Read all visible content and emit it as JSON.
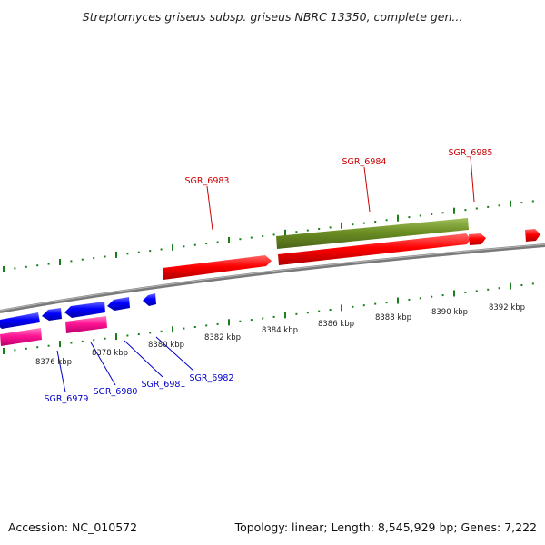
{
  "title": "Streptomyces griseus subsp. griseus NBRC 13350, complete gen...",
  "footer": {
    "accession": "Accession: NC_010572",
    "summary": "Topology: linear; Length: 8,545,929 bp; Genes: 7,222"
  },
  "axis": {
    "ticks": [
      "8376 kbp",
      "8378 kbp",
      "8380 kbp",
      "8382 kbp",
      "8384 kbp",
      "8386 kbp",
      "8388 kbp",
      "8390 kbp",
      "8392 kbp"
    ]
  },
  "gene_labels_top": [
    "SGR_6983",
    "SGR_6984",
    "SGR_6985"
  ],
  "gene_labels_bottom": [
    "SGR_6979",
    "SGR_6980",
    "SGR_6981",
    "SGR_6982"
  ],
  "colors": {
    "forward_gene": "#ff0000",
    "reverse_gene": "#0000ff",
    "feature_forward": "#6b8e23",
    "feature_reverse": "#ff1493",
    "top_label": "#cc0000",
    "bottom_label": "#0000cc",
    "tick_green": "#1a7f1a",
    "backbone": "#888888"
  }
}
